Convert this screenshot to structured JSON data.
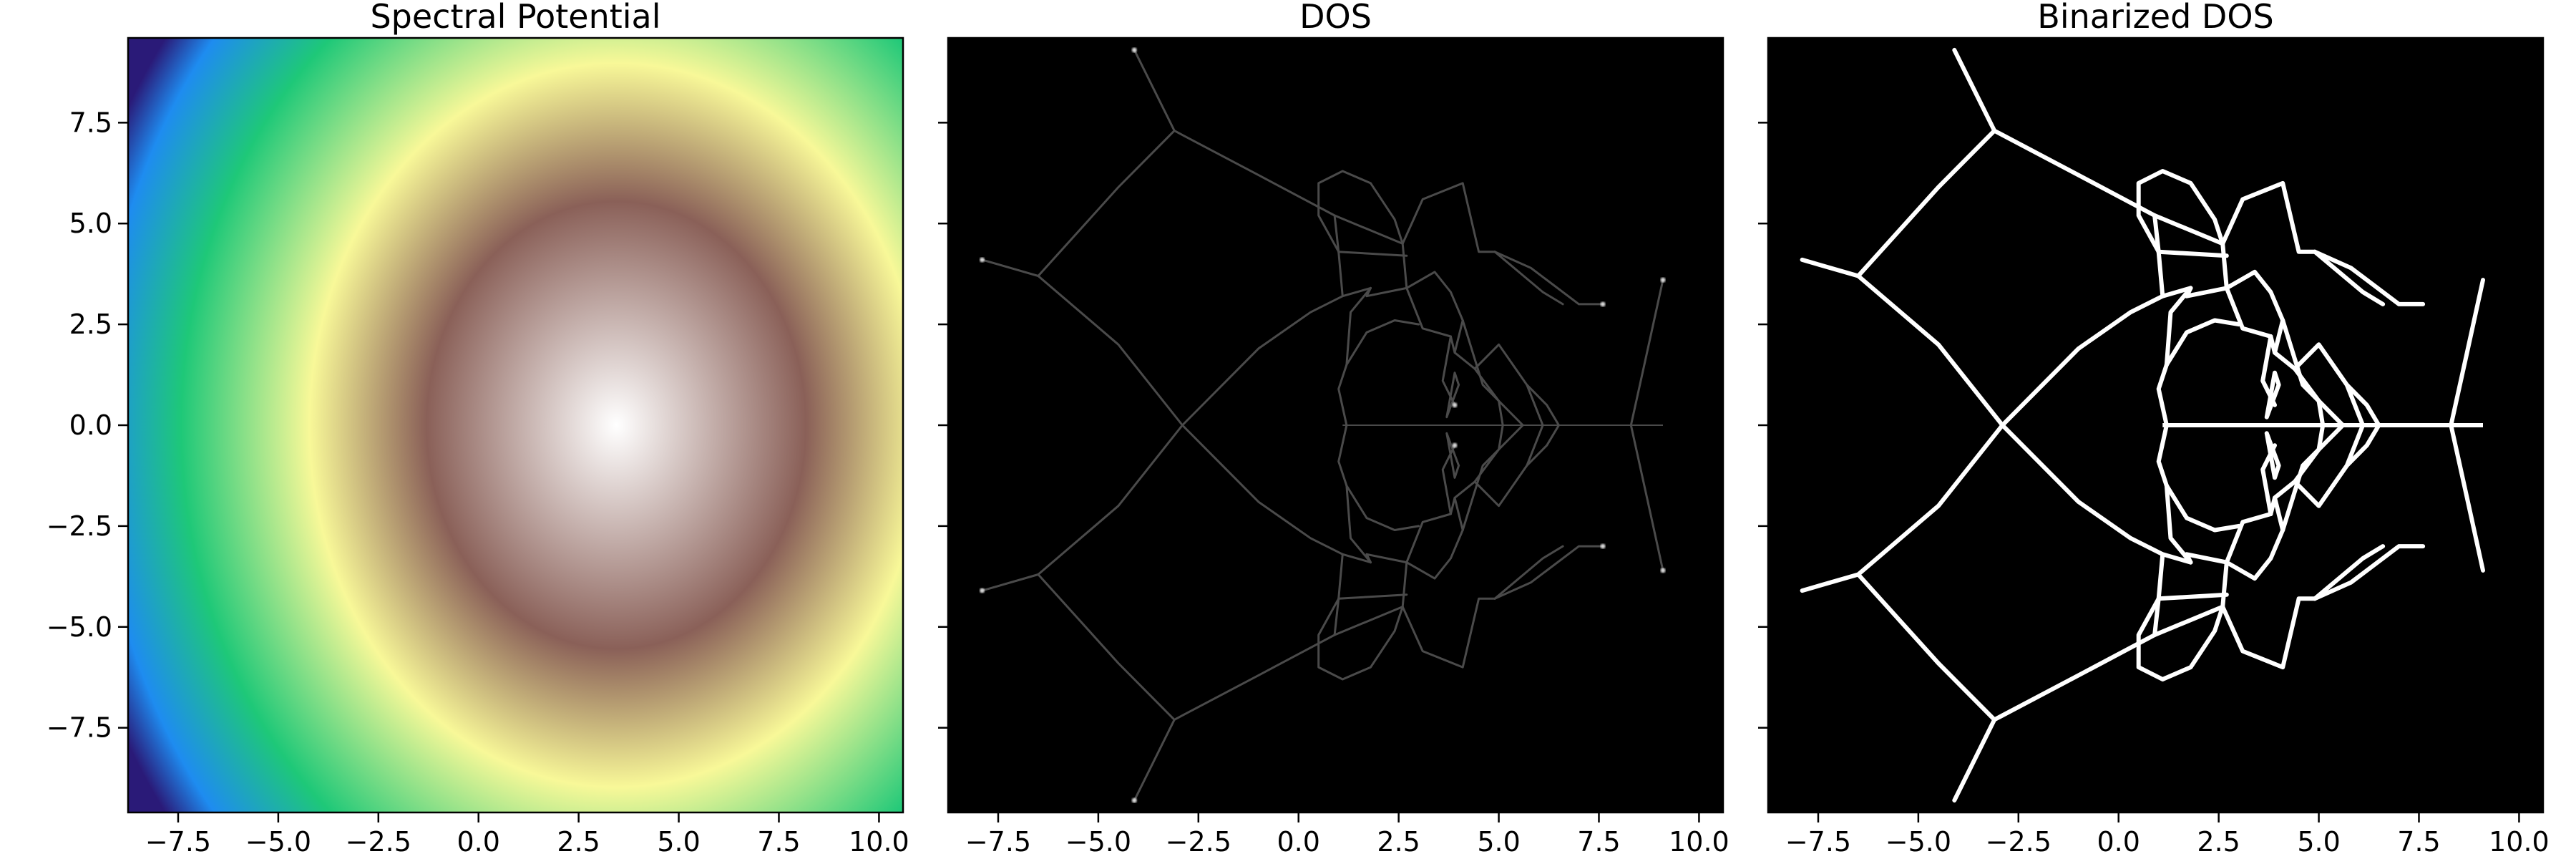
{
  "colors": {
    "page_background": "#ffffff",
    "axes_frame": "#000000",
    "dos_background": "#000000",
    "dos_curve": "#4a4a4a",
    "dos_highlight": "#d8d8d8",
    "binarized_curve": "#ffffff",
    "colormap": [
      "#2a1a78",
      "#1e8cf0",
      "#1ec878",
      "#f8f898",
      "#8a6058",
      "#ffffff"
    ]
  },
  "chart_data": [
    {
      "type": "heatmap",
      "title": "Spectral Potential",
      "xlim": [
        -8.75,
        10.6
      ],
      "ylim": [
        -9.6,
        9.6
      ],
      "xticks": [
        -7.5,
        -5.0,
        -2.5,
        0.0,
        2.5,
        5.0,
        7.5,
        10.0
      ],
      "xtick_labels": [
        "−7.5",
        "−5.0",
        "−2.5",
        "0.0",
        "2.5",
        "5.0",
        "7.5",
        "10.0"
      ],
      "yticks": [
        7.5,
        5.0,
        2.5,
        0.0,
        -2.5,
        -5.0,
        -7.5
      ],
      "ytick_labels": [
        "7.5",
        "5.0",
        "2.5",
        "0.0",
        "−2.5",
        "−5.0",
        "−7.5"
      ],
      "colormap": "terrain",
      "maximum_at": [
        3.8,
        0.0
      ],
      "grid": false
    },
    {
      "type": "heatmap",
      "title": "DOS",
      "xlim": [
        -8.75,
        10.6
      ],
      "ylim": [
        -9.6,
        9.6
      ],
      "xticks": [
        -7.5,
        -5.0,
        -2.5,
        0.0,
        2.5,
        5.0,
        7.5,
        10.0
      ],
      "xtick_labels": [
        "−7.5",
        "−5.0",
        "−2.5",
        "0.0",
        "2.5",
        "5.0",
        "7.5",
        "10.0"
      ],
      "yticks": [
        7.5,
        5.0,
        2.5,
        0.0,
        -2.5,
        -5.0,
        -7.5
      ],
      "ytick_labels": [],
      "grid": false
    },
    {
      "type": "heatmap",
      "title": "Binarized DOS",
      "xlim": [
        -8.75,
        10.6
      ],
      "ylim": [
        -9.6,
        9.6
      ],
      "xticks": [
        -7.5,
        -5.0,
        -2.5,
        0.0,
        2.5,
        5.0,
        7.5,
        10.0
      ],
      "xtick_labels": [
        "−7.5",
        "−5.0",
        "−2.5",
        "0.0",
        "2.5",
        "5.0",
        "7.5",
        "10.0"
      ],
      "yticks": [
        7.5,
        5.0,
        2.5,
        0.0,
        -2.5,
        -5.0,
        -7.5
      ],
      "ytick_labels": [],
      "grid": false
    }
  ],
  "curve_network": {
    "top_half_polylines": [
      [
        [
          -4.1,
          9.3
        ],
        [
          -3.1,
          7.3
        ],
        [
          -1.0,
          6.2
        ],
        [
          0.9,
          5.2
        ],
        [
          2.6,
          4.5
        ]
      ],
      [
        [
          -3.1,
          7.3
        ],
        [
          -4.5,
          5.9
        ],
        [
          -6.5,
          3.7
        ]
      ],
      [
        [
          -7.9,
          4.1
        ],
        [
          -6.5,
          3.7
        ],
        [
          -4.5,
          2.0
        ],
        [
          -2.9,
          0.0
        ]
      ],
      [
        [
          -2.9,
          0.0
        ],
        [
          -1.0,
          1.9
        ],
        [
          0.3,
          2.8
        ],
        [
          1.1,
          3.2
        ],
        [
          1.8,
          3.4
        ]
      ],
      [
        [
          2.6,
          4.5
        ],
        [
          2.7,
          3.4
        ]
      ],
      [
        [
          1.0,
          4.3
        ],
        [
          0.9,
          5.2
        ]
      ],
      [
        [
          1.1,
          3.2
        ],
        [
          1.0,
          4.3
        ]
      ],
      [
        [
          1.0,
          4.3
        ],
        [
          2.7,
          4.2
        ]
      ],
      [
        [
          2.6,
          4.5
        ],
        [
          3.1,
          5.6
        ],
        [
          4.1,
          6.0
        ],
        [
          4.5,
          4.3
        ],
        [
          4.9,
          4.3
        ]
      ],
      [
        [
          1.0,
          4.3
        ],
        [
          0.5,
          5.2
        ],
        [
          0.5,
          6.0
        ],
        [
          1.1,
          6.3
        ],
        [
          1.8,
          6.0
        ],
        [
          2.4,
          5.1
        ],
        [
          2.6,
          4.5
        ]
      ],
      [
        [
          2.7,
          3.4
        ],
        [
          3.4,
          3.8
        ],
        [
          3.8,
          3.3
        ],
        [
          4.1,
          2.6
        ]
      ],
      [
        [
          2.7,
          3.4
        ],
        [
          1.7,
          3.2
        ],
        [
          1.8,
          3.4
        ]
      ],
      [
        [
          2.7,
          3.4
        ],
        [
          3.1,
          2.4
        ],
        [
          3.8,
          2.2
        ]
      ],
      [
        [
          4.9,
          4.3
        ],
        [
          6.1,
          3.3
        ],
        [
          6.6,
          3.0
        ]
      ],
      [
        [
          4.9,
          4.3
        ],
        [
          5.8,
          3.9
        ],
        [
          7.0,
          3.0
        ],
        [
          7.6,
          3.0
        ]
      ],
      [
        [
          1.8,
          3.4
        ],
        [
          1.3,
          2.8
        ],
        [
          1.2,
          1.5
        ]
      ],
      [
        [
          3.8,
          2.2
        ],
        [
          3.9,
          1.8
        ],
        [
          4.1,
          2.6
        ]
      ],
      [
        [
          3.8,
          2.2
        ],
        [
          3.6,
          1.1
        ],
        [
          3.9,
          0.5
        ]
      ],
      [
        [
          4.0,
          1.0
        ],
        [
          3.7,
          0.2
        ],
        [
          3.9,
          1.3
        ],
        [
          4.0,
          1.0
        ]
      ],
      [
        [
          1.2,
          1.5
        ],
        [
          1.7,
          2.3
        ],
        [
          2.4,
          2.6
        ],
        [
          3.0,
          2.5
        ]
      ],
      [
        [
          4.1,
          2.6
        ],
        [
          4.6,
          1.0
        ],
        [
          5.6,
          0.0
        ]
      ],
      [
        [
          3.9,
          1.8
        ],
        [
          4.4,
          1.4
        ],
        [
          5.0,
          0.6
        ],
        [
          5.1,
          0.0
        ]
      ],
      [
        [
          4.4,
          1.4
        ],
        [
          5.0,
          2.0
        ],
        [
          5.7,
          1.0
        ],
        [
          6.1,
          0.0
        ]
      ],
      [
        [
          5.7,
          1.0
        ],
        [
          6.2,
          0.5
        ],
        [
          6.5,
          0.0
        ]
      ],
      [
        [
          8.3,
          0.0
        ],
        [
          8.7,
          1.8
        ],
        [
          9.1,
          3.6
        ]
      ],
      [
        [
          1.2,
          0.0
        ],
        [
          1.0,
          0.9
        ],
        [
          1.2,
          1.5
        ]
      ]
    ],
    "axis_segment": [
      [
        1.1,
        0.0
      ],
      [
        9.1,
        0.0
      ]
    ],
    "dos_bright_points": [
      [
        -4.1,
        9.3
      ],
      [
        -7.9,
        4.1
      ],
      [
        7.6,
        3.0
      ],
      [
        9.1,
        3.6
      ],
      [
        3.9,
        0.5
      ]
    ]
  }
}
